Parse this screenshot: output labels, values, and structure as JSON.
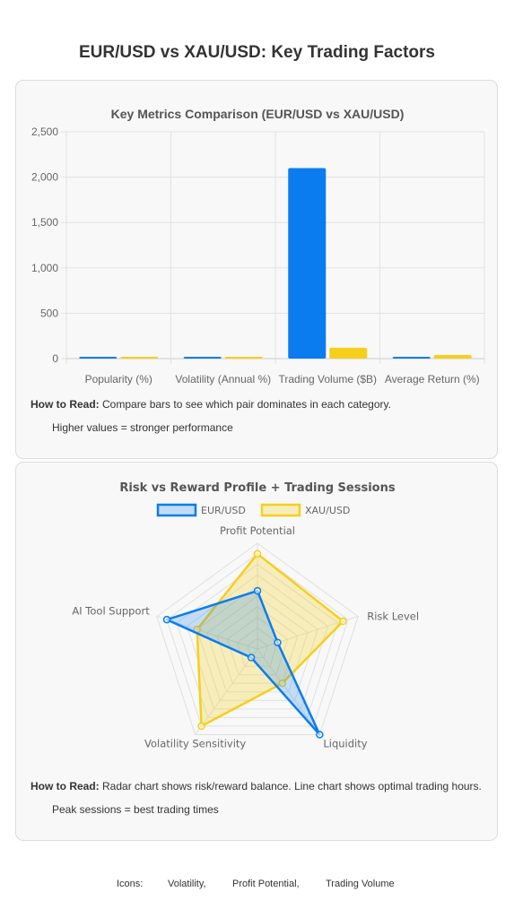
{
  "page": {
    "title": "EUR/USD vs XAU/USD: Key Trading Factors"
  },
  "bar_section": {
    "how_label": "How to Read:",
    "how_text": " Compare bars to see which pair dominates in each category.",
    "how_sub": "Higher values = stronger performance"
  },
  "radar_section": {
    "how_label": "How to Read:",
    "how_text": " Radar chart shows risk/reward balance. Line chart shows optimal trading hours.",
    "how_sub": "Peak sessions = best trading times"
  },
  "footer": {
    "icons_label": "Icons:",
    "item1": "Volatility,",
    "item2": "Profit Potential,",
    "item3": "Trading Volume"
  },
  "chart_data": [
    {
      "type": "bar",
      "title": "Key Metrics Comparison (EUR/USD vs XAU/USD)",
      "categories": [
        "Popularity (%)",
        "Volatility (Annual %)",
        "Trading Volume ($B)",
        "Average Return (%)"
      ],
      "series": [
        {
          "name": "EUR/USD",
          "values": [
            20,
            8,
            2100,
            6
          ],
          "color": "#0a7cf0"
        },
        {
          "name": "XAU/USD",
          "values": [
            10,
            12,
            120,
            40
          ],
          "color": "#f6cf1c"
        }
      ],
      "ylim": [
        0,
        2500
      ],
      "yticks": [
        "0",
        "500",
        "1,000",
        "1,500",
        "2,000",
        "2,500"
      ],
      "grid": true,
      "legend": "none"
    },
    {
      "type": "radar",
      "title": "Risk vs Reward Profile + Trading Sessions",
      "axes": [
        "Profit Potential",
        "Risk Level",
        "Liquidity",
        "Volatility Sensitivity",
        "AI Tool Support"
      ],
      "rlim": [
        0,
        10
      ],
      "series": [
        {
          "name": "EUR/USD",
          "values": [
            5.5,
            2,
            10,
            1,
            9
          ],
          "color": "#0a7cf0",
          "fill": "rgba(10,124,240,0.22)"
        },
        {
          "name": "XAU/USD",
          "values": [
            9,
            8.5,
            4,
            9,
            6
          ],
          "color": "#f6cf1c",
          "fill": "rgba(246,207,28,0.28)"
        }
      ],
      "grid": true,
      "legend": "top"
    }
  ]
}
